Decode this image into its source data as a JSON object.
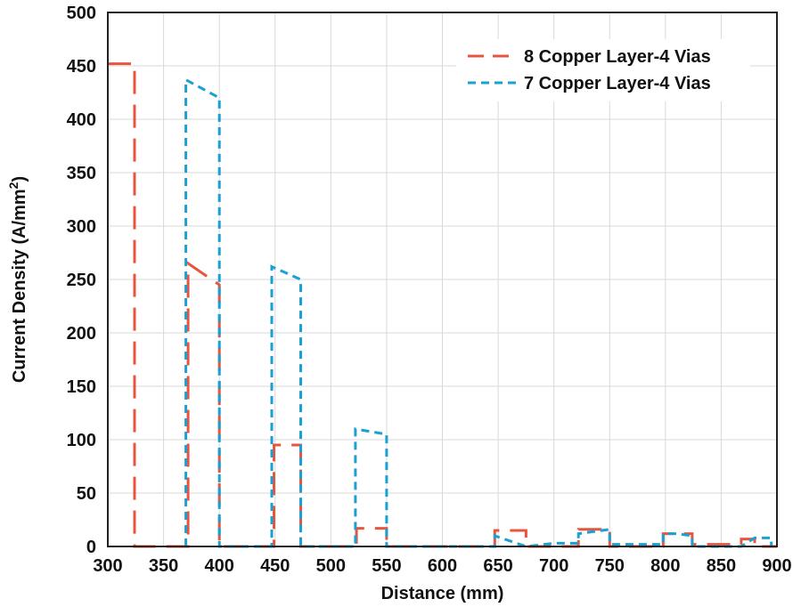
{
  "chart_data": {
    "type": "line",
    "title": "",
    "xlabel": "Distance (mm)",
    "ylabel": "Current Density (A/mm",
    "ylabel_superscript": "2",
    "ylabel_suffix": ")",
    "xlim": [
      300,
      900
    ],
    "ylim": [
      0,
      500
    ],
    "xticks": [
      300,
      350,
      400,
      450,
      500,
      550,
      600,
      650,
      700,
      750,
      800,
      850,
      900
    ],
    "yticks": [
      0,
      50,
      100,
      150,
      200,
      250,
      300,
      350,
      400,
      450,
      500
    ],
    "grid": true,
    "legend_position": "top-right",
    "series": [
      {
        "name": "8 Copper Layer-4 Vias",
        "color": "#e8553f",
        "dash": "long-dash",
        "x": [
          300,
          324,
          324,
          372,
          372,
          400,
          400,
          449,
          449,
          473,
          473,
          523,
          523,
          550,
          550,
          647,
          647,
          675,
          675,
          722,
          722,
          750,
          750,
          798,
          798,
          824,
          824,
          868,
          868,
          880,
          880,
          900
        ],
        "y": [
          452,
          452,
          0,
          0,
          265,
          245,
          0,
          0,
          95,
          95,
          0,
          0,
          17,
          17,
          0,
          0,
          15,
          15,
          0,
          0,
          16,
          16,
          0,
          0,
          12,
          12,
          2,
          2,
          7,
          7,
          0,
          0
        ]
      },
      {
        "name": "7 Copper Layer-4 Vias",
        "color": "#1aa0d1",
        "dash": "short-dash",
        "x": [
          370,
          370,
          400,
          400,
          447,
          447,
          473,
          473,
          522,
          522,
          550,
          550,
          647,
          647,
          675,
          700,
          722,
          722,
          750,
          750,
          798,
          798,
          810,
          824,
          824,
          868,
          880,
          880,
          895,
          895
        ],
        "y": [
          0,
          437,
          420,
          0,
          0,
          262,
          250,
          0,
          0,
          110,
          105,
          0,
          0,
          10,
          0,
          3,
          3,
          12,
          16,
          2,
          2,
          12,
          12,
          10,
          0,
          0,
          8,
          8,
          8,
          0
        ]
      }
    ]
  }
}
